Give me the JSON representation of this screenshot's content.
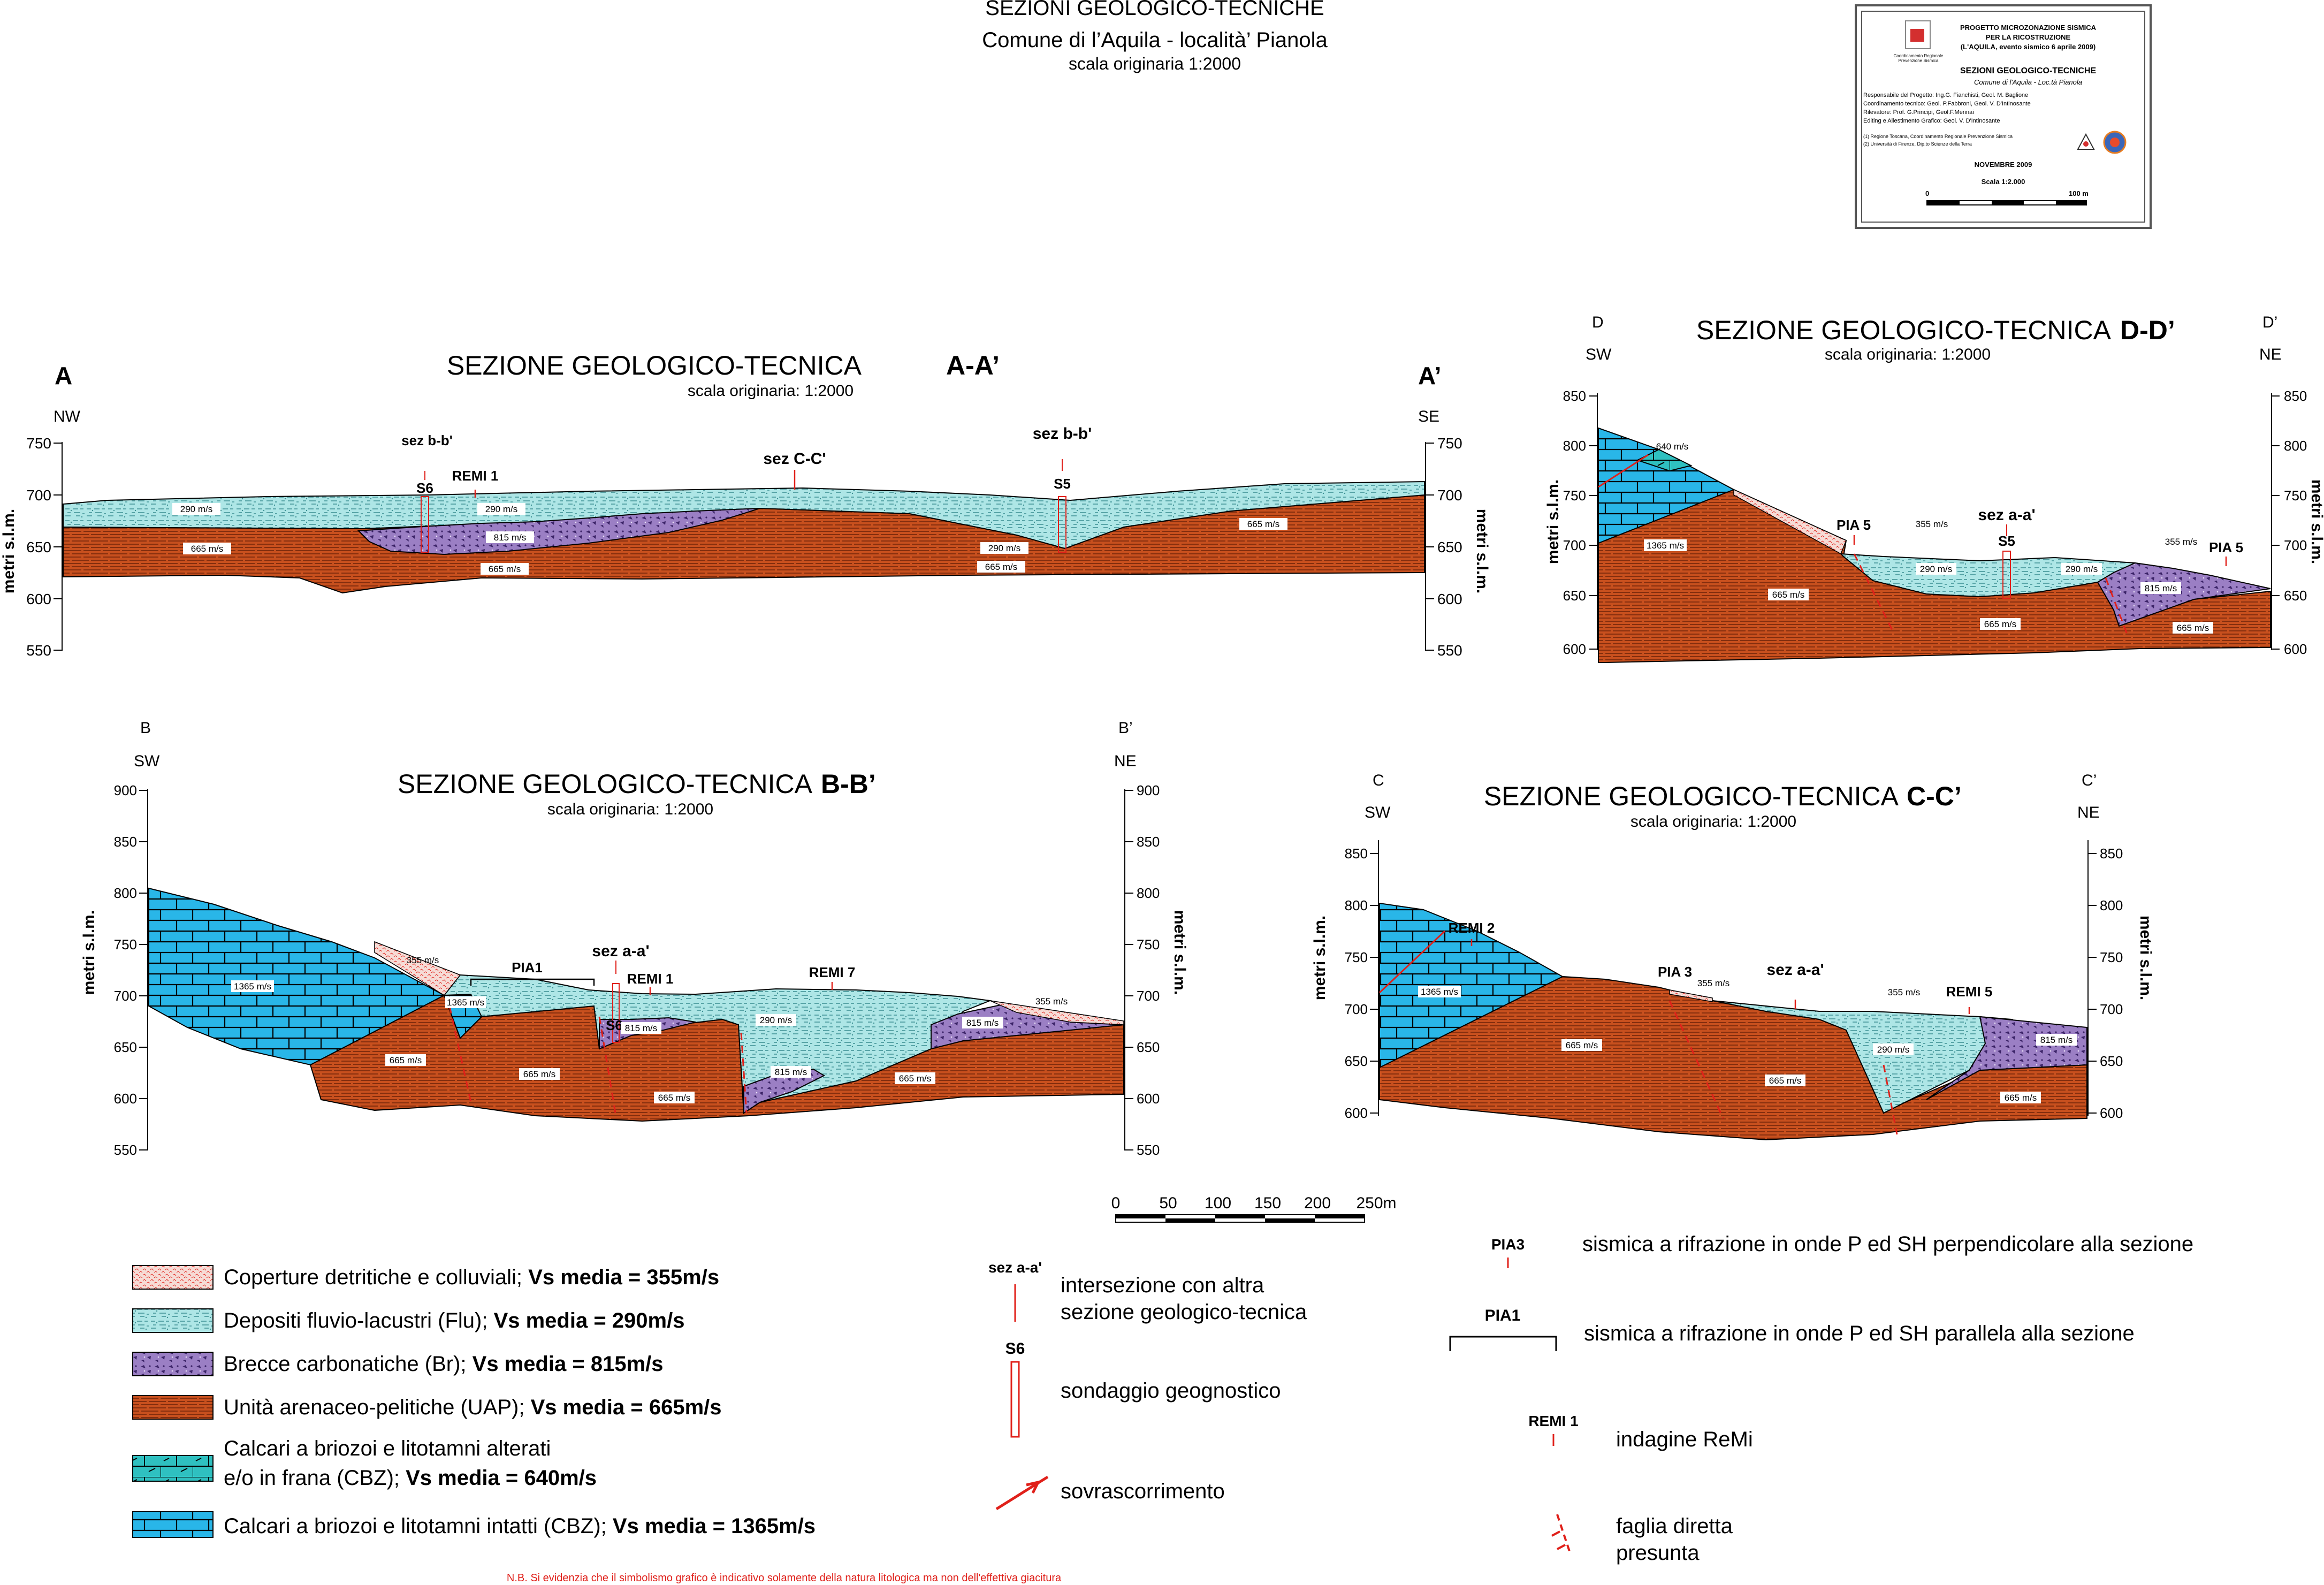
{
  "header": {
    "title": "SEZIONI GEOLOGICO-TECNICHE",
    "subtitle": "Comune di l’Aquila - località’ Pianola",
    "scale": "scala originaria 1:2000"
  },
  "title_block": {
    "line1": "PROGETTO MICROZONAZIONE SISMICA",
    "line2": "PER LA RICOSTRUZIONE",
    "line3": "(L'AQUILA, evento sismico 6 aprile 2009)",
    "logo_text": "Coordinamento Regionale Prevenzione Sismica",
    "doc_title": "SEZIONI GEOLOGICO-TECNICHE",
    "doc_subtitle": "Comune di l'Aquila - Loc.tà Pianola",
    "credit1": "Responsabile del Progetto: Ing.G. Fianchisti, Geol. M. Baglione",
    "credit2": "Coordinamento tecnico: Geol. P.Fabbroni, Geol. V. D'Intinosante",
    "credit3": "Rilevatore: Prof. G.Principi, Geol.F.Mennai",
    "credit4": "Editing e Allestimento Grafico: Geol. V. D'Intinosante",
    "note1": "(1) Regione Toscana, Coordinamento Regionale Prevenzione Sismica",
    "note2": "(2) Università di Firenze, Dip.to Scienze della Terra",
    "date": "NOVEMBRE 2009",
    "scale": "Scala 1:2.000",
    "bar_start": "0",
    "bar_end": "100 m"
  },
  "sections": {
    "aa": {
      "title": "SEZIONE GEOLOGICO-TECNICA",
      "code": "A-A’",
      "scale": "scala originaria: 1:2000",
      "left_letter": "A",
      "right_letter": "A’",
      "left_dir": "NW",
      "right_dir": "SE",
      "axis_label": "metri s.l.m.",
      "ticks": [
        "750",
        "700",
        "650",
        "600",
        "550"
      ],
      "labels": {
        "sez_b1": "sez b-b'",
        "sez_c": "sez C-C'",
        "sez_b2": "sez b-b'",
        "s6": "S6",
        "remi1": "REMI 1",
        "s5": "S5",
        "v290a": "290 m/s",
        "v290b": "290 m/s",
        "v290c": "290 m/s",
        "v815": "815 m/s",
        "v665a": "665 m/s",
        "v665b": "665 m/s",
        "v665c": "665 m/s",
        "v665d": "665 m/s"
      }
    },
    "bb": {
      "title": "SEZIONE GEOLOGICO-TECNICA",
      "code": "B-B’",
      "scale": "scala originaria: 1:2000",
      "left_letter": "B",
      "right_letter": "B’",
      "left_dir": "SW",
      "right_dir": "NE",
      "axis_label": "metri s.l.m.",
      "ticks": [
        "900",
        "850",
        "800",
        "750",
        "700",
        "650",
        "600",
        "550"
      ],
      "labels": {
        "pia1": "PIA1",
        "sez_a": "sez a-a'",
        "remi1": "REMI 1",
        "remi7": "REMI 7",
        "s6": "S6",
        "v1365a": "1365 m/s",
        "v1365b": "1365 m/s",
        "v355a": "355 m/s",
        "v355b": "355 m/s",
        "v290": "290 m/s",
        "v815a": "815 m/s",
        "v815b": "815 m/s",
        "v815c": "815 m/s",
        "v665a": "665 m/s",
        "v665b": "665 m/s",
        "v665c": "665 m/s",
        "v665d": "665 m/s"
      }
    },
    "cc": {
      "title": "SEZIONE GEOLOGICO-TECNICA",
      "code": "C-C’",
      "scale": "scala originaria: 1:2000",
      "left_letter": "C",
      "right_letter": "C’",
      "left_dir": "SW",
      "right_dir": "NE",
      "axis_label": "metri s.l.m.",
      "ticks": [
        "850",
        "800",
        "750",
        "700",
        "650",
        "600"
      ],
      "labels": {
        "remi2": "REMI 2",
        "pia3": "PIA 3",
        "sez_a": "sez a-a'",
        "remi5": "REMI 5",
        "v1365": "1365 m/s",
        "v355a": "355 m/s",
        "v355b": "355 m/s",
        "v290": "290 m/s",
        "v815": "815 m/s",
        "v665a": "665 m/s",
        "v665b": "665 m/s",
        "v665c": "665 m/s"
      }
    },
    "dd": {
      "title": "SEZIONE GEOLOGICO-TECNICA",
      "code": "D-D’",
      "scale": "scala originaria: 1:2000",
      "left_letter": "D",
      "right_letter": "D’",
      "left_dir": "SW",
      "right_dir": "NE",
      "axis_label": "metri s.l.m.",
      "ticks": [
        "850",
        "800",
        "750",
        "700",
        "650",
        "600"
      ],
      "labels": {
        "v640": "640 m/s",
        "v1365": "1365 m/s",
        "pia5a": "PIA 5",
        "pia5b": "PIA 5",
        "sez_a": "sez a-a'",
        "s5": "S5",
        "v355a": "355 m/s",
        "v355b": "355 m/s",
        "v290a": "290 m/s",
        "v290b": "290 m/s",
        "v815": "815 m/s",
        "v665a": "665 m/s",
        "v665b": "665 m/s",
        "v665c": "665 m/s"
      }
    }
  },
  "scalebar": {
    "ticks": [
      "0",
      "50",
      "100",
      "150",
      "200",
      "250m"
    ]
  },
  "legend": [
    {
      "text": "Coperture detritiche e colluviali; ",
      "bold": "Vs media = 355m/s",
      "color": "#f2c9c3"
    },
    {
      "text": "Depositi fluvio-lacustri (Flu); ",
      "bold": "Vs media = 290m/s",
      "color": "#aee6e6"
    },
    {
      "text": "Brecce carbonatiche (Br); ",
      "bold": "Vs media = 815m/s",
      "color": "#9b7fc4"
    },
    {
      "text": "Unità arenaceo-pelitiche  (UAP); ",
      "bold": "Vs media = 665m/s",
      "color": "#c8501e"
    },
    {
      "text": "Calcari a briozoi e litotamni alterati",
      "text2": "e/o in frana (CBZ); ",
      "bold": "Vs media = 640m/s",
      "color": "#2fc0c0"
    },
    {
      "text": "Calcari a briozoi e litotamni intatti  (CBZ); ",
      "bold": "Vs media = 1365m/s",
      "color": "#29b6e8"
    }
  ],
  "symbols": {
    "sez_label": "sez a-a'",
    "sez_text1": "intersezione con altra",
    "sez_text2": "sezione geologico-tecnica",
    "s6_label": "S6",
    "s6_text": "sondaggio geognostico",
    "thrust_text": "sovrascorrimento",
    "pia3_label": "PIA3",
    "pia3_text": "sismica a rifrazione in onde P ed SH perpendicolare alla sezione",
    "pia1_label": "PIA1",
    "pia1_text": "sismica a rifrazione in onde P ed SH parallela alla sezione",
    "remi_label": "REMI 1",
    "remi_text": "indagine ReMi",
    "fault_text1": "faglia diretta",
    "fault_text2": "presunta"
  },
  "footnote": "N.B. Si evidenzia che il simbolismo grafico è indicativo solamente della natura litologica ma non dell'effettiva giacitura",
  "colors": {
    "uap": "#c8501e",
    "flu": "#aee6e6",
    "br": "#9b7fc4",
    "cbz": "#29b6e8",
    "cbz_alt": "#2fc0c0",
    "cover": "#f2c9c3",
    "red": "#e0201a"
  }
}
